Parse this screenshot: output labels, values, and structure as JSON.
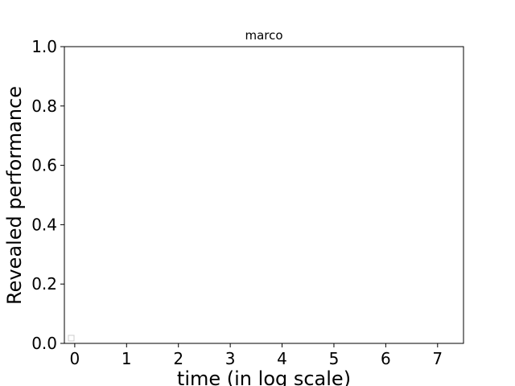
{
  "chart_data": {
    "type": "line",
    "title": "marco",
    "xlabel": "time (in log scale)",
    "ylabel": "Revealed performance",
    "xlim": [
      -0.2,
      7.5
    ],
    "ylim": [
      0.0,
      1.0
    ],
    "x_ticks": [
      0,
      1,
      2,
      3,
      4,
      5,
      6,
      7
    ],
    "x_tick_labels": [
      "0",
      "1",
      "2",
      "3",
      "4",
      "5",
      "6",
      "7"
    ],
    "y_ticks": [
      0.0,
      0.2,
      0.4,
      0.6,
      0.8,
      1.0
    ],
    "y_tick_labels": [
      "0.0",
      "0.2",
      "0.4",
      "0.6",
      "0.8",
      "1.0"
    ],
    "grid": false,
    "legend": "bottom-left",
    "series": []
  }
}
